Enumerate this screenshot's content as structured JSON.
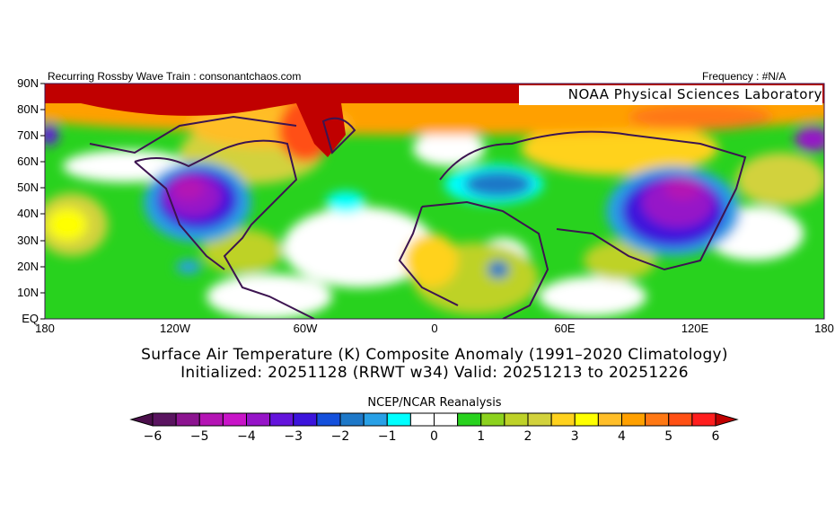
{
  "header": {
    "left_label": "Recurring Rossby Wave Train : consonantchaos.com",
    "right_label": "Frequency : #N/A",
    "credit": "NOAA Physical Sciences Laboratory"
  },
  "map": {
    "lat_labels": [
      "90N",
      "80N",
      "70N",
      "60N",
      "50N",
      "40N",
      "30N",
      "20N",
      "10N",
      "EQ"
    ],
    "lon_labels": [
      "180",
      "120W",
      "60W",
      "0",
      "60E",
      "120E",
      "180"
    ],
    "colors": {
      "land_outline": "#3c1450",
      "extreme_warm": "#c00000",
      "extreme_cold": "#4b0f4b"
    }
  },
  "titles": {
    "line1": "Surface Air Temperature (K) Composite Anomaly (1991–2020 Climatology)",
    "line2": "Initialized: 20251128 (RRWT w34) Valid: 20251213 to 20251226"
  },
  "colorbar": {
    "title": "NCEP/NCAR Reanalysis",
    "tick_labels": [
      "-6",
      "-5",
      "-4",
      "-3",
      "-2",
      "-1",
      "0",
      "1",
      "2",
      "3",
      "4",
      "5",
      "6"
    ],
    "range": [
      -6,
      6
    ],
    "step": 0.5,
    "low_arrow_color": "#4b0f4b",
    "high_arrow_color": "#c00000",
    "box_colors": [
      "#5a1460",
      "#8c1490",
      "#b414b4",
      "#c814c8",
      "#9614c8",
      "#6414dc",
      "#3c14dc",
      "#1450dc",
      "#1e78c8",
      "#28a0e6",
      "#00ffff",
      "#ffffff",
      "#ffffff",
      "#28d21e",
      "#8cd21e",
      "#bed228",
      "#d2d23c",
      "#ffd21e",
      "#ffff00",
      "#ffbe28",
      "#ffa000",
      "#ff7814",
      "#ff5014",
      "#ff1e1e"
    ]
  }
}
